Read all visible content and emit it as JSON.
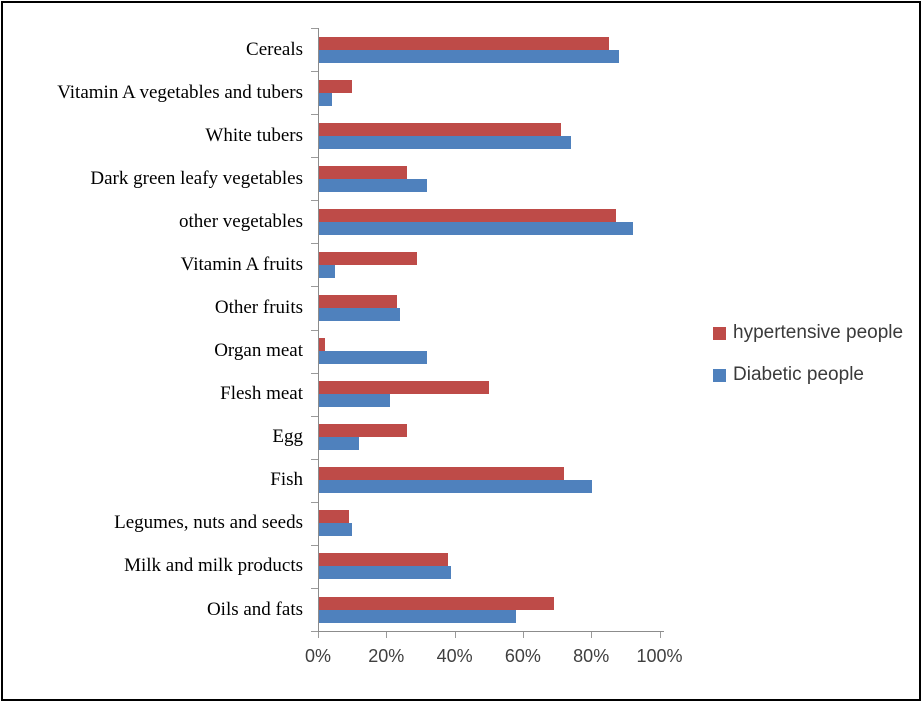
{
  "chart_data": {
    "type": "bar",
    "orientation": "horizontal",
    "title": "",
    "xlabel": "",
    "ylabel": "",
    "xlim": [
      0,
      100
    ],
    "x_tick_labels": [
      "0%",
      "20%",
      "40%",
      "60%",
      "80%",
      "100%"
    ],
    "grid": false,
    "legend_position": "right",
    "categories": [
      "Cereals",
      "Vitamin A vegetables and tubers",
      "White tubers",
      "Dark green leafy vegetables",
      "other vegetables",
      "Vitamin A fruits",
      "Other fruits",
      "Organ meat",
      "Flesh meat",
      "Egg",
      "Fish",
      "Legumes, nuts and seeds",
      "Milk and milk products",
      "Oils and fats"
    ],
    "series": [
      {
        "name": "hypertensive people",
        "color": "#BE4B48",
        "values": [
          85,
          10,
          71,
          26,
          87,
          29,
          23,
          2,
          50,
          26,
          72,
          9,
          38,
          69
        ]
      },
      {
        "name": "Diabetic people",
        "color": "#4F81BD",
        "values": [
          88,
          4,
          74,
          32,
          92,
          5,
          24,
          32,
          21,
          12,
          80,
          10,
          39,
          58
        ]
      }
    ]
  },
  "colors": {
    "hypertensive": "#BE4B48",
    "diabetic": "#4F81BD",
    "axis": "#8c8c8c",
    "axis_text": "#3f3f3f",
    "border": "#000000"
  }
}
